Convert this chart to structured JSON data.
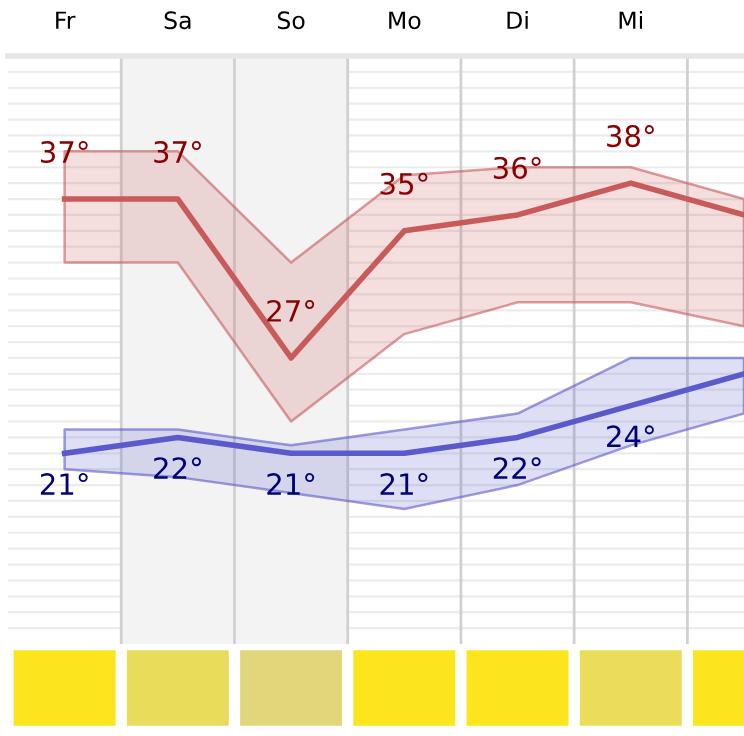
{
  "chart_data": {
    "type": "line",
    "categories": [
      "Fr",
      "Sa",
      "So",
      "Mo",
      "Di",
      "Mi",
      null
    ],
    "series": [
      {
        "color": "#c85a5a",
        "values": [
          37,
          37,
          27,
          35,
          36,
          38,
          36
        ],
        "lower": [
          33,
          33,
          23,
          28.5,
          30.5,
          30.5,
          29
        ],
        "upper": [
          40,
          40,
          33,
          38.5,
          39,
          39,
          37
        ],
        "value_labels": [
          "37°",
          "37°",
          "27°",
          "35°",
          "36°",
          "38°",
          null
        ]
      },
      {
        "color": "#5a5acc",
        "values": [
          21,
          22,
          21,
          21,
          22,
          24,
          26
        ],
        "lower": [
          20,
          19.5,
          18.5,
          17.5,
          19,
          21.5,
          23.5
        ],
        "upper": [
          22.5,
          22.5,
          21.5,
          22.5,
          23.5,
          27,
          27
        ],
        "value_labels": [
          "21°",
          "22°",
          "21°",
          "21°",
          "22°",
          "24°",
          null
        ]
      }
    ],
    "ylim": [
      9,
      46
    ],
    "yticks": [
      {
        "value": 10,
        "label": null
      },
      {
        "value": 11,
        "label": null
      },
      {
        "value": 12,
        "label": null
      },
      {
        "value": 13,
        "label": null
      },
      {
        "value": 14,
        "label": null
      },
      {
        "value": 15,
        "label": null
      },
      {
        "value": 16,
        "label": null
      },
      {
        "value": 17,
        "label": null
      },
      {
        "value": 18,
        "label": null
      },
      {
        "value": 19,
        "label": null
      },
      {
        "value": 20,
        "label": null
      },
      {
        "value": 21,
        "label": null
      },
      {
        "value": 22,
        "label": null
      },
      {
        "value": 23,
        "label": null
      },
      {
        "value": 24,
        "label": null
      },
      {
        "value": 25,
        "label": null
      },
      {
        "value": 26,
        "label": null
      },
      {
        "value": 27,
        "label": null
      },
      {
        "value": 28,
        "label": null
      },
      {
        "value": 29,
        "label": null
      },
      {
        "value": 30,
        "label": null
      },
      {
        "value": 31,
        "label": null
      },
      {
        "value": 32,
        "label": null
      },
      {
        "value": 33,
        "label": null
      },
      {
        "value": 34,
        "label": null
      },
      {
        "value": 35,
        "label": null
      },
      {
        "value": 36,
        "label": null
      },
      {
        "value": 37,
        "label": null
      },
      {
        "value": 38,
        "label": null
      },
      {
        "value": 39,
        "label": null
      },
      {
        "value": 40,
        "label": null
      },
      {
        "value": 41,
        "label": null
      },
      {
        "value": 42,
        "label": null
      },
      {
        "value": 43,
        "label": null
      },
      {
        "value": 44,
        "label": null
      },
      {
        "value": 45,
        "label": null
      }
    ],
    "bands": [
      {
        "axis": "x",
        "from": "Sa",
        "to": "So",
        "color": "#f3f3f3"
      }
    ],
    "grid": true,
    "tick_labels": "x",
    "marker": "none",
    "line_style": "solid",
    "legend": false
  }
}
